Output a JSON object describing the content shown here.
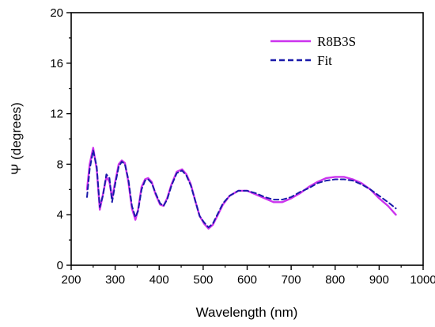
{
  "chart_data": {
    "type": "line",
    "xlabel": "Wavelength (nm)",
    "ylabel": "Ψ (degrees)",
    "xlim": [
      200,
      1000
    ],
    "ylim": [
      0,
      20
    ],
    "xticks": [
      200,
      300,
      400,
      500,
      600,
      700,
      800,
      900,
      1000
    ],
    "yticks": [
      0,
      4,
      8,
      12,
      16,
      20
    ],
    "legend_position": "top-right",
    "grid": false,
    "series": [
      {
        "name": "R8B3S",
        "color": "#cc33ee",
        "style": "solid",
        "x": [
          236,
          242,
          250,
          258,
          265,
          272,
          280,
          287,
          293,
          300,
          308,
          315,
          322,
          330,
          338,
          346,
          352,
          360,
          368,
          375,
          383,
          392,
          402,
          410,
          418,
          428,
          440,
          452,
          462,
          472,
          482,
          492,
          502,
          512,
          522,
          532,
          545,
          560,
          580,
          600,
          620,
          640,
          660,
          680,
          700,
          720,
          740,
          760,
          780,
          800,
          820,
          840,
          860,
          880,
          900,
          920,
          938
        ],
        "y": [
          6.0,
          8.0,
          9.3,
          7.6,
          4.4,
          5.6,
          7.0,
          6.6,
          5.3,
          6.6,
          8.0,
          8.3,
          8.1,
          6.6,
          4.5,
          3.6,
          4.4,
          6.2,
          6.8,
          6.9,
          6.6,
          5.6,
          4.8,
          4.7,
          5.3,
          6.4,
          7.4,
          7.6,
          7.2,
          6.4,
          5.1,
          3.9,
          3.3,
          2.9,
          3.2,
          3.9,
          4.8,
          5.5,
          5.9,
          5.9,
          5.6,
          5.3,
          5.0,
          5.0,
          5.3,
          5.7,
          6.2,
          6.6,
          6.9,
          7.0,
          7.0,
          6.8,
          6.5,
          6.0,
          5.3,
          4.7,
          4.0
        ]
      },
      {
        "name": "Fit",
        "color": "#1a1aaa",
        "style": "dashed",
        "x": [
          236,
          242,
          250,
          258,
          265,
          272,
          280,
          287,
          293,
          300,
          308,
          315,
          322,
          330,
          338,
          346,
          352,
          360,
          368,
          375,
          383,
          392,
          402,
          410,
          418,
          428,
          440,
          452,
          462,
          472,
          482,
          492,
          502,
          512,
          522,
          532,
          545,
          560,
          580,
          600,
          620,
          640,
          660,
          680,
          700,
          720,
          740,
          760,
          780,
          800,
          820,
          840,
          860,
          880,
          900,
          920,
          938
        ],
        "y": [
          5.4,
          7.6,
          9.1,
          7.8,
          4.6,
          5.5,
          7.2,
          6.9,
          5.0,
          6.4,
          7.8,
          8.2,
          8.0,
          6.8,
          4.7,
          3.8,
          4.3,
          6.0,
          6.7,
          6.8,
          6.5,
          5.7,
          4.9,
          4.7,
          5.2,
          6.3,
          7.3,
          7.5,
          7.1,
          6.3,
          5.1,
          3.9,
          3.4,
          3.0,
          3.3,
          4.0,
          4.9,
          5.5,
          5.9,
          5.9,
          5.7,
          5.4,
          5.2,
          5.2,
          5.4,
          5.8,
          6.1,
          6.5,
          6.7,
          6.8,
          6.8,
          6.7,
          6.4,
          6.0,
          5.5,
          5.0,
          4.5
        ]
      }
    ]
  }
}
